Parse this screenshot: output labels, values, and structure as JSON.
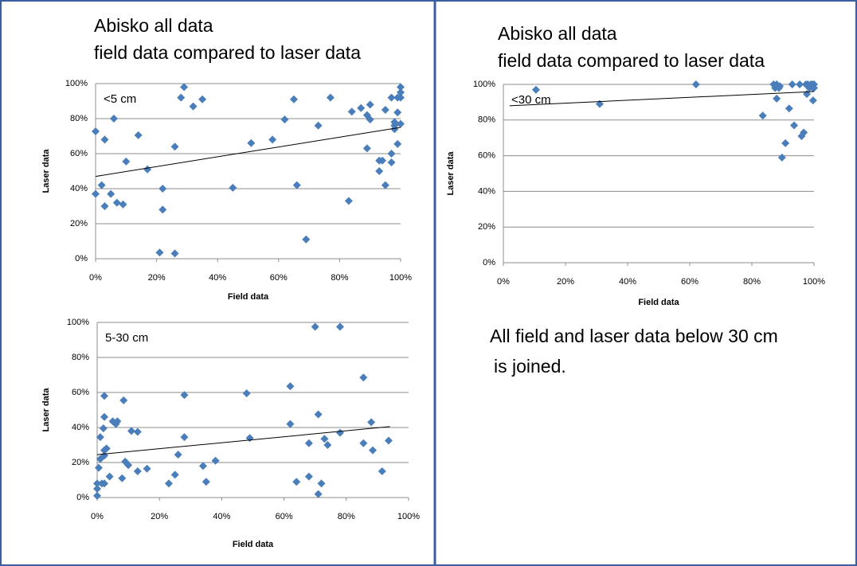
{
  "chart_data": [
    {
      "type": "scatter",
      "title": [
        "Abisko all data",
        "field data compared to laser data"
      ],
      "annotation": "<5 cm",
      "xlabel": "Field data",
      "ylabel": "Laser data",
      "color": "#4a7ebb",
      "grid": true,
      "xlim": [
        0,
        100
      ],
      "ylim": [
        0,
        100
      ],
      "xticks": [
        {
          "value": 0,
          "label": "0%"
        },
        {
          "value": 20,
          "label": "20%"
        },
        {
          "value": 40,
          "label": "40%"
        },
        {
          "value": 60,
          "label": "60%"
        },
        {
          "value": 80,
          "label": "80%"
        },
        {
          "value": 100,
          "label": "100%"
        }
      ],
      "yticks": [
        {
          "value": 0,
          "label": "0%"
        },
        {
          "value": 20,
          "label": "20%"
        },
        {
          "value": 40,
          "label": "40%"
        },
        {
          "value": 60,
          "label": "60%"
        },
        {
          "value": 80,
          "label": "80%"
        },
        {
          "value": 100,
          "label": "100%"
        }
      ],
      "x": [
        0,
        0,
        2,
        3,
        3,
        5,
        6,
        7,
        9,
        10,
        14,
        17,
        21,
        22,
        22,
        26,
        26,
        28,
        29,
        32,
        35,
        45,
        51,
        58,
        62,
        65,
        66,
        69,
        73,
        77,
        83,
        84,
        87,
        89,
        89,
        90,
        90,
        93,
        93,
        94,
        95,
        95,
        97,
        97,
        97,
        98,
        98,
        98,
        99,
        99,
        99,
        100,
        100,
        100,
        100
      ],
      "y": [
        72.7,
        37,
        42,
        68,
        30,
        37,
        80,
        32,
        31,
        55.5,
        70.5,
        51,
        3.5,
        28,
        40,
        3,
        64,
        92,
        98,
        87,
        91,
        40.5,
        66,
        68,
        79.5,
        91,
        42,
        11,
        76,
        92,
        33,
        84,
        86,
        63,
        82,
        79.5,
        88,
        50,
        56,
        56,
        42,
        85,
        60,
        55,
        92,
        74,
        76,
        78,
        92,
        65.5,
        83.5,
        98,
        95,
        92,
        77
      ],
      "trendline": {
        "x": [
          0,
          100
        ],
        "y": [
          47,
          75
        ]
      }
    },
    {
      "type": "scatter",
      "annotation": "5-30 cm",
      "xlabel": "Field data",
      "ylabel": "Laser data",
      "color": "#4a7ebb",
      "grid": true,
      "xlim": [
        0,
        100
      ],
      "ylim": [
        0,
        100
      ],
      "xticks": [
        {
          "value": 0,
          "label": "0%"
        },
        {
          "value": 20,
          "label": "20%"
        },
        {
          "value": 40,
          "label": "40%"
        },
        {
          "value": 60,
          "label": "60%"
        },
        {
          "value": 80,
          "label": "80%"
        },
        {
          "value": 100,
          "label": "100%"
        }
      ],
      "yticks": [
        {
          "value": 0,
          "label": "0%"
        },
        {
          "value": 20,
          "label": "20%"
        },
        {
          "value": 40,
          "label": "40%"
        },
        {
          "value": 60,
          "label": "60%"
        },
        {
          "value": 80,
          "label": "80%"
        },
        {
          "value": 100,
          "label": "100%"
        }
      ],
      "x": [
        0,
        0,
        0,
        0.5,
        1,
        1,
        1.5,
        2,
        2.3,
        2.3,
        2.3,
        2.3,
        2.3,
        3,
        4,
        5,
        6,
        6.5,
        8,
        8.5,
        9,
        10,
        11,
        13,
        13,
        16,
        23,
        25,
        26,
        28,
        28,
        34,
        35,
        38,
        48,
        49,
        62,
        62,
        64,
        68,
        68,
        70,
        71,
        71,
        72,
        73,
        74,
        78,
        78,
        85.5,
        85.5,
        88,
        88.5,
        91.5,
        93.6
      ],
      "y": [
        1,
        5,
        8,
        17,
        22,
        34.5,
        8,
        39.5,
        46,
        58,
        27,
        24,
        8,
        28,
        12,
        43.5,
        42,
        43.5,
        11,
        55.5,
        20.5,
        18.5,
        38,
        37.5,
        15,
        16.5,
        8,
        13,
        24.5,
        58.5,
        34.5,
        18,
        9,
        21,
        59.5,
        34,
        63.5,
        42,
        9,
        12,
        31,
        97.5,
        47.5,
        2,
        8,
        33.5,
        30,
        97.5,
        37,
        68.5,
        31,
        43,
        27,
        15,
        32.5
      ],
      "trendline": {
        "x": [
          0,
          94
        ],
        "y": [
          24.5,
          40.5
        ]
      }
    },
    {
      "type": "scatter",
      "title": [
        "Abisko all data",
        "field data compared to laser data"
      ],
      "annotation": "<30 cm",
      "xlabel": "Field data",
      "ylabel": "Laser data",
      "color": "#4a7ebb",
      "grid": true,
      "xlim": [
        0,
        100
      ],
      "ylim": [
        0,
        100
      ],
      "xticks": [
        {
          "value": 0,
          "label": "0%"
        },
        {
          "value": 20,
          "label": "20%"
        },
        {
          "value": 40,
          "label": "40%"
        },
        {
          "value": 60,
          "label": "60%"
        },
        {
          "value": 80,
          "label": "80%"
        },
        {
          "value": 100,
          "label": "100%"
        }
      ],
      "yticks": [
        {
          "value": 0,
          "label": "0%"
        },
        {
          "value": 20,
          "label": "20%"
        },
        {
          "value": 40,
          "label": "40%"
        },
        {
          "value": 60,
          "label": "60%"
        },
        {
          "value": 80,
          "label": "80%"
        },
        {
          "value": 100,
          "label": "100%"
        }
      ],
      "x": [
        10.5,
        31,
        62,
        83.5,
        87,
        87.5,
        88,
        88,
        88.7,
        89,
        89.7,
        90.8,
        92,
        93,
        93.6,
        95.4,
        96,
        96.7,
        97.4,
        97.7,
        98,
        98.5,
        99,
        99.5,
        99.7,
        100,
        100,
        99.7
      ],
      "y": [
        97,
        89,
        100,
        82.5,
        100,
        98,
        92,
        100,
        98,
        99,
        59,
        67,
        86.5,
        100,
        77,
        100,
        71,
        73,
        100,
        94.6,
        100,
        98,
        100,
        100,
        98,
        100,
        98,
        91
      ],
      "trendline": {
        "x": [
          2,
          100
        ],
        "y": [
          88,
          96
        ]
      }
    }
  ],
  "note": [
    "All field and laser data below 30 cm",
    "is joined."
  ]
}
